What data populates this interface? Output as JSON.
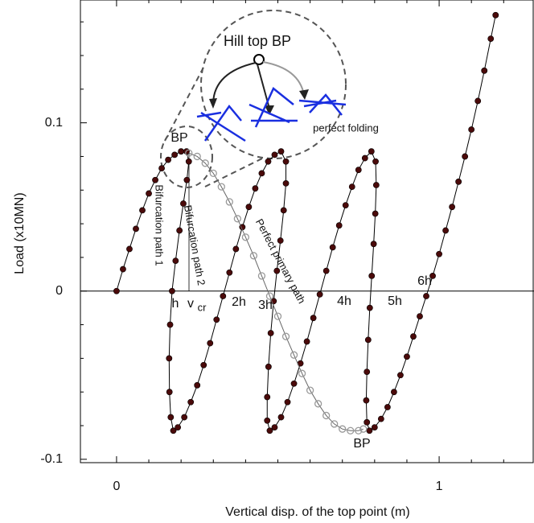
{
  "chart_data": {
    "type": "scatter",
    "xlabel": "Vertical disp. of the top point (m)",
    "ylabel": "Load (x10MN)",
    "xlim": [
      -0.112,
      1.294
    ],
    "ylim": [
      -0.102,
      0.173
    ],
    "xticks": [
      0,
      1
    ],
    "yticks": [
      -0.1,
      0,
      0.1
    ],
    "xminorticks": [
      0.1,
      0.2,
      0.3,
      0.4,
      0.5,
      0.6,
      0.7,
      0.8,
      0.9,
      1.1,
      1.2
    ],
    "yminorticks": [
      -0.08,
      -0.06,
      -0.04,
      -0.02,
      0.02,
      0.04,
      0.06,
      0.08,
      0.12,
      0.14,
      0.16
    ],
    "series": [
      {
        "color": "#4a0a0a",
        "marker": "filled",
        "x": [
          0,
          0.02,
          0.04,
          0.06,
          0.08,
          0.1,
          0.12,
          0.14,
          0.16,
          0.18,
          0.2,
          0.217,
          0.224,
          0.218,
          0.207,
          0.195,
          0.183,
          0.172,
          0.166,
          0.163,
          0.164,
          0.168,
          0.176,
          0.19,
          0.21,
          0.23,
          0.25,
          0.27,
          0.29,
          0.31,
          0.33,
          0.35,
          0.37,
          0.39,
          0.41,
          0.43,
          0.45,
          0.47,
          0.49,
          0.51,
          0.525,
          0.525,
          0.518,
          0.508,
          0.497,
          0.487,
          0.478,
          0.471,
          0.467,
          0.467,
          0.475,
          0.49,
          0.51,
          0.53,
          0.55,
          0.57,
          0.59,
          0.61,
          0.63,
          0.65,
          0.67,
          0.69,
          0.71,
          0.73,
          0.75,
          0.77,
          0.79,
          0.803,
          0.805,
          0.802,
          0.797,
          0.791,
          0.785,
          0.78,
          0.776,
          0.774,
          0.776,
          0.784,
          0.8,
          0.82,
          0.84,
          0.86,
          0.88,
          0.9,
          0.92,
          0.94,
          0.96,
          0.98,
          1.0,
          1.02,
          1.04,
          1.06,
          1.08,
          1.1,
          1.12,
          1.14,
          1.16,
          1.175
        ],
        "values": [
          0,
          0.013,
          0.025,
          0.037,
          0.048,
          0.058,
          0.066,
          0.073,
          0.078,
          0.081,
          0.083,
          0.083,
          0.077,
          0.066,
          0.052,
          0.036,
          0.018,
          0.0,
          -0.02,
          -0.04,
          -0.06,
          -0.075,
          -0.083,
          -0.081,
          -0.075,
          -0.066,
          -0.056,
          -0.044,
          -0.031,
          -0.017,
          -0.003,
          0.011,
          0.025,
          0.038,
          0.05,
          0.061,
          0.07,
          0.077,
          0.081,
          0.083,
          0.077,
          0.064,
          0.048,
          0.03,
          0.012,
          -0.006,
          -0.025,
          -0.045,
          -0.063,
          -0.077,
          -0.083,
          -0.081,
          -0.075,
          -0.066,
          -0.055,
          -0.043,
          -0.03,
          -0.016,
          -0.002,
          0.012,
          0.026,
          0.039,
          0.051,
          0.062,
          0.072,
          0.079,
          0.083,
          0.077,
          0.063,
          0.046,
          0.028,
          0.009,
          -0.01,
          -0.029,
          -0.048,
          -0.065,
          -0.078,
          -0.083,
          -0.081,
          -0.076,
          -0.069,
          -0.06,
          -0.05,
          -0.039,
          -0.027,
          -0.015,
          -0.003,
          0.009,
          0.022,
          0.036,
          0.05,
          0.065,
          0.08,
          0.096,
          0.113,
          0.131,
          0.15,
          0.164
        ]
      },
      {
        "color": "#999999",
        "marker": "open",
        "x": [
          0.224,
          0.25,
          0.275,
          0.3,
          0.325,
          0.35,
          0.375,
          0.4,
          0.425,
          0.45,
          0.475,
          0.5,
          0.525,
          0.55,
          0.575,
          0.6,
          0.625,
          0.65,
          0.675,
          0.7,
          0.725,
          0.75,
          0.765
        ],
        "values": [
          0.082,
          0.08,
          0.076,
          0.07,
          0.062,
          0.053,
          0.043,
          0.032,
          0.021,
          0.009,
          -0.003,
          -0.015,
          -0.027,
          -0.038,
          -0.049,
          -0.059,
          -0.067,
          -0.074,
          -0.079,
          -0.082,
          -0.083,
          -0.083,
          -0.082
        ]
      }
    ],
    "annotations": {
      "bp_top": "BP",
      "bp_bottom": "BP",
      "hill_top": "Hill top BP",
      "folding": "perfect folding",
      "path1": "Bifurcation path 1",
      "path2": "Bifurcation path 2",
      "primary": "Perfect primary path",
      "h": "h",
      "vcr": "v",
      "vcr_sub": "cr",
      "h2": "2h",
      "h3": "3h",
      "h4": "4h",
      "h5": "5h",
      "h6": "6h"
    }
  }
}
